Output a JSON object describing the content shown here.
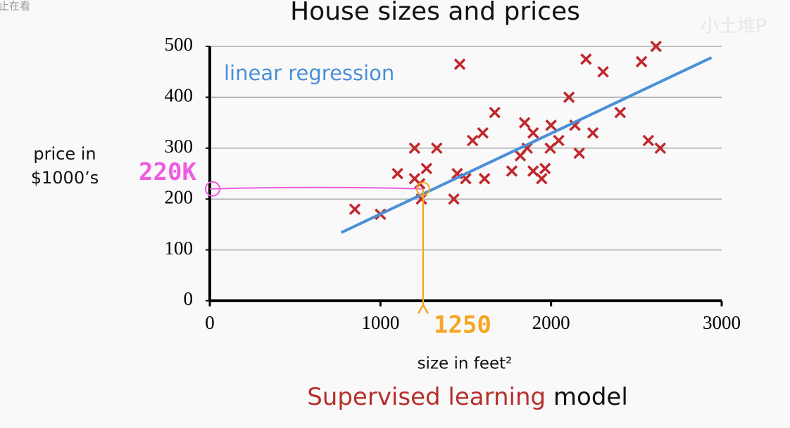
{
  "chart_data": {
    "type": "scatter",
    "title": "House sizes and prices",
    "xlabel": "size in feet²",
    "ylabel": [
      "price in",
      "$1000’s"
    ],
    "xlim": [
      0,
      3000
    ],
    "ylim": [
      0,
      500
    ],
    "xticks": [
      0,
      1000,
      2000,
      3000
    ],
    "yticks": [
      0,
      100,
      200,
      300,
      400,
      500
    ],
    "grid": true,
    "series": [
      {
        "type": "scatter",
        "color": "#c0282d",
        "x": [
          850,
          1000,
          1100,
          1200,
          1200,
          1230,
          1240,
          1270,
          1330,
          1430,
          1450,
          1465,
          1500,
          1540,
          1600,
          1610,
          1670,
          1770,
          1820,
          1845,
          1860,
          1895,
          1895,
          1945,
          1965,
          2000,
          1995,
          2045,
          2105,
          2140,
          2165,
          2205,
          2245,
          2305,
          2405,
          2530,
          2570,
          2615,
          2640
        ],
        "y": [
          180,
          170,
          250,
          300,
          240,
          230,
          200,
          260,
          300,
          200,
          250,
          465,
          240,
          315,
          330,
          240,
          370,
          255,
          285,
          350,
          300,
          330,
          255,
          240,
          260,
          345,
          300,
          315,
          400,
          345,
          290,
          475,
          330,
          450,
          370,
          470,
          315,
          500,
          300
        ]
      },
      {
        "type": "line",
        "name": "linear regression",
        "color": "#4a8fd8",
        "x": [
          770,
          2940
        ],
        "y": [
          134,
          478
        ]
      }
    ],
    "guide": {
      "x": 1250,
      "y": 220,
      "x_label": "1250",
      "y_label": "220K",
      "x_color": "#f5a623",
      "y_color": "#ee5ce0"
    },
    "footer": {
      "highlight": "Supervised learning",
      "rest": "model"
    },
    "watermarks": [
      "止在看",
      "小土堆P"
    ]
  }
}
